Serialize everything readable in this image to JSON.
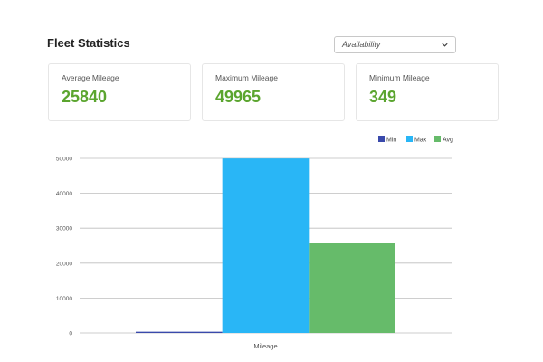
{
  "header": {
    "title": "Fleet Statistics",
    "select_value": "Availability"
  },
  "cards": [
    {
      "label": "Average Mileage",
      "value": "25840"
    },
    {
      "label": "Maximum Mileage",
      "value": "49965"
    },
    {
      "label": "Minimum Mileage",
      "value": "349"
    }
  ],
  "colors": {
    "accent_value": "#5ba52f",
    "series_min": "#3949ab",
    "series_max": "#29b6f6",
    "series_avg": "#66bb6a"
  },
  "chart_data": {
    "type": "bar",
    "categories": [
      "Mileage"
    ],
    "series": [
      {
        "name": "Min",
        "values": [
          349
        ],
        "color": "#3949ab"
      },
      {
        "name": "Max",
        "values": [
          49965
        ],
        "color": "#29b6f6"
      },
      {
        "name": "Avg",
        "values": [
          25840
        ],
        "color": "#66bb6a"
      }
    ],
    "ylim": [
      0,
      50000
    ],
    "yticks": [
      0,
      10000,
      20000,
      30000,
      40000,
      50000
    ],
    "xlabel": "Mileage",
    "ylabel": "",
    "grid": true,
    "legend_position": "top-right"
  }
}
